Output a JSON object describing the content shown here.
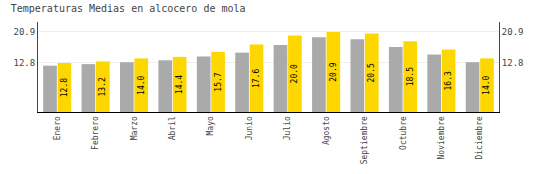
{
  "chart_data": {
    "type": "bar",
    "title": "Temperaturas Medias en alcocero de mola",
    "categories": [
      "Enero",
      "Febrero",
      "Marzo",
      "Abril",
      "Mayo",
      "Junio",
      "Julio",
      "Agosto",
      "Septiembre",
      "Octubre",
      "Noviembre",
      "Diciembre"
    ],
    "series": [
      {
        "color": "#AAAAAA",
        "values": [
          12.1,
          12.5,
          13.0,
          13.5,
          14.5,
          15.5,
          17.5,
          19.5,
          19.0,
          17.0,
          15.0,
          13.0
        ]
      },
      {
        "color": "#FFD700",
        "values": [
          12.8,
          13.2,
          14.0,
          14.4,
          15.7,
          17.6,
          20.0,
          20.9,
          20.5,
          18.5,
          16.3,
          14.0
        ],
        "data_labels": true,
        "value_labels": [
          "12.8",
          "13.2",
          "14.0",
          "14.4",
          "15.7",
          "17.6",
          "20.0",
          "20.9",
          "20.5",
          "18.5",
          "16.3",
          "14.0"
        ]
      }
    ],
    "ylim": [
      0,
      23.5
    ],
    "yticks": [
      12.8,
      20.9
    ],
    "y2lim": [
      0,
      23.5
    ],
    "y2ticks": [
      12.8,
      20.9
    ],
    "grid": true
  }
}
